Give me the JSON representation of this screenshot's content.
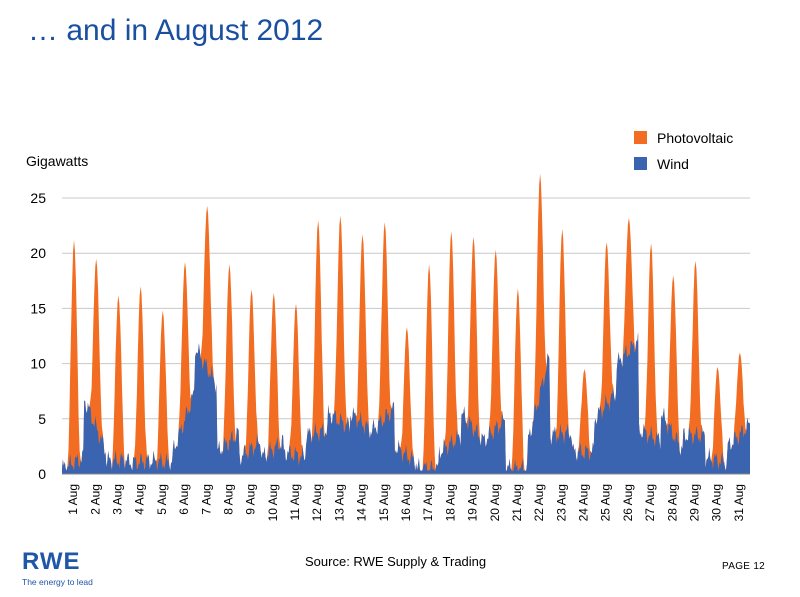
{
  "slide": {
    "title": "… and in August 2012",
    "source": "Source: RWE Supply & Trading",
    "page_label": "PAGE 12",
    "logo_text": "RWE",
    "logo_tagline": "The energy to lead"
  },
  "colors": {
    "title": "#1a4fa0",
    "photovoltaic": "#f26d21",
    "wind": "#3a63b0",
    "grid": "#c8c8c8",
    "logo": "#1f56a8"
  },
  "chart_data": {
    "type": "area",
    "stacked": true,
    "ylabel": "Gigawatts",
    "ylim": [
      0,
      25
    ],
    "yticks": [
      0,
      5,
      10,
      15,
      20,
      25
    ],
    "grid": true,
    "legend_position": "top-right",
    "categories": [
      "1 Aug",
      "2 Aug",
      "3 Aug",
      "4 Aug",
      "5 Aug",
      "6 Aug",
      "7 Aug",
      "8 Aug",
      "9 Aug",
      "10 Aug",
      "11 Aug",
      "12 Aug",
      "13 Aug",
      "14 Aug",
      "15 Aug",
      "16 Aug",
      "17 Aug",
      "18 Aug",
      "19 Aug",
      "20 Aug",
      "21 Aug",
      "22 Aug",
      "23 Aug",
      "24 Aug",
      "25 Aug",
      "26 Aug",
      "27 Aug",
      "28 Aug",
      "29 Aug",
      "30 Aug",
      "31 Aug"
    ],
    "series": [
      {
        "name": "Photovoltaic",
        "daily_peak_total": [
          21.2,
          19.5,
          16.2,
          17.0,
          14.8,
          19.2,
          24.3,
          19.0,
          16.7,
          16.4,
          15.4,
          23.0,
          23.4,
          21.7,
          22.8,
          13.3,
          19.0,
          22.0,
          21.5,
          20.3,
          16.8,
          27.2,
          22.2,
          9.5,
          21.0,
          23.2,
          20.9,
          18.0,
          19.3,
          9.7,
          11.0
        ]
      },
      {
        "name": "Wind",
        "daily_range": [
          [
            0.5,
            1.5
          ],
          [
            6.8,
            2.0
          ],
          [
            1.2,
            1.3
          ],
          [
            1.0,
            1.2
          ],
          [
            1.2,
            1.0
          ],
          [
            2.0,
            7.5
          ],
          [
            11.5,
            8.0
          ],
          [
            2.0,
            3.8
          ],
          [
            1.5,
            3.0
          ],
          [
            1.5,
            3.0
          ],
          [
            2.0,
            1.5
          ],
          [
            3.5,
            4.0
          ],
          [
            5.5,
            4.2
          ],
          [
            5.5,
            3.8
          ],
          [
            4.0,
            6.0
          ],
          [
            2.5,
            1.0
          ],
          [
            0.5,
            0.5
          ],
          [
            2.0,
            3.5
          ],
          [
            5.5,
            3.0
          ],
          [
            3.0,
            5.0
          ],
          [
            0.5,
            0.5
          ],
          [
            3.0,
            11.0
          ],
          [
            3.5,
            3.8
          ],
          [
            2.0,
            2.0
          ],
          [
            5.0,
            7.5
          ],
          [
            10.0,
            12.2
          ],
          [
            4.0,
            3.0
          ],
          [
            5.5,
            2.0
          ],
          [
            3.5,
            3.5
          ],
          [
            1.5,
            1.0
          ],
          [
            2.5,
            4.5
          ]
        ]
      }
    ]
  }
}
